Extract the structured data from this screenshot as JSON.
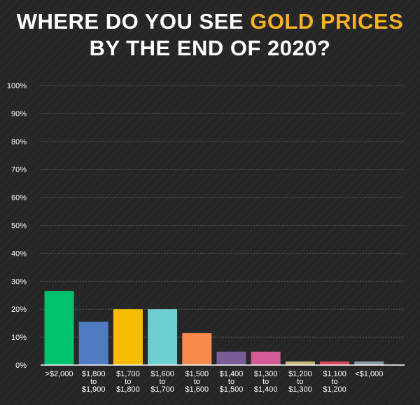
{
  "title": {
    "part1": "WHERE DO YOU SEE ",
    "highlight": "GOLD PRICES",
    "part2": "BY THE END OF 2020?",
    "highlight_color": "#f5b223"
  },
  "chart_data": {
    "type": "bar",
    "categories": [
      [
        ">$2,000"
      ],
      [
        "$1,800",
        "to",
        "$1,900"
      ],
      [
        "$1,700",
        "to",
        "$1,800"
      ],
      [
        "$1,600",
        "to",
        "$1,700"
      ],
      [
        "$1,500",
        "to",
        "$1,600"
      ],
      [
        "$1,400",
        "to",
        "$1,500"
      ],
      [
        "$1,300",
        "to",
        "$1,400"
      ],
      [
        "$1,200",
        "to",
        "$1,300"
      ],
      [
        "$1,100",
        "to",
        "$1,200"
      ],
      [
        "<$1,000"
      ]
    ],
    "values": [
      26.5,
      15.5,
      20,
      20,
      11.5,
      4.8,
      4.8,
      1.3,
      1.3,
      1.3
    ],
    "colors": [
      "#00c26e",
      "#4f7bc0",
      "#f7bd00",
      "#6ccfcf",
      "#f98a4e",
      "#7a5c96",
      "#d35a94",
      "#c4b978",
      "#d9455e",
      "#8a9aa3"
    ],
    "ylim": [
      0,
      100
    ],
    "yticks": [
      0,
      10,
      20,
      30,
      40,
      50,
      60,
      70,
      80,
      90,
      100
    ],
    "ytick_suffix": "%",
    "grid": true,
    "xlabel": "",
    "ylabel": ""
  }
}
